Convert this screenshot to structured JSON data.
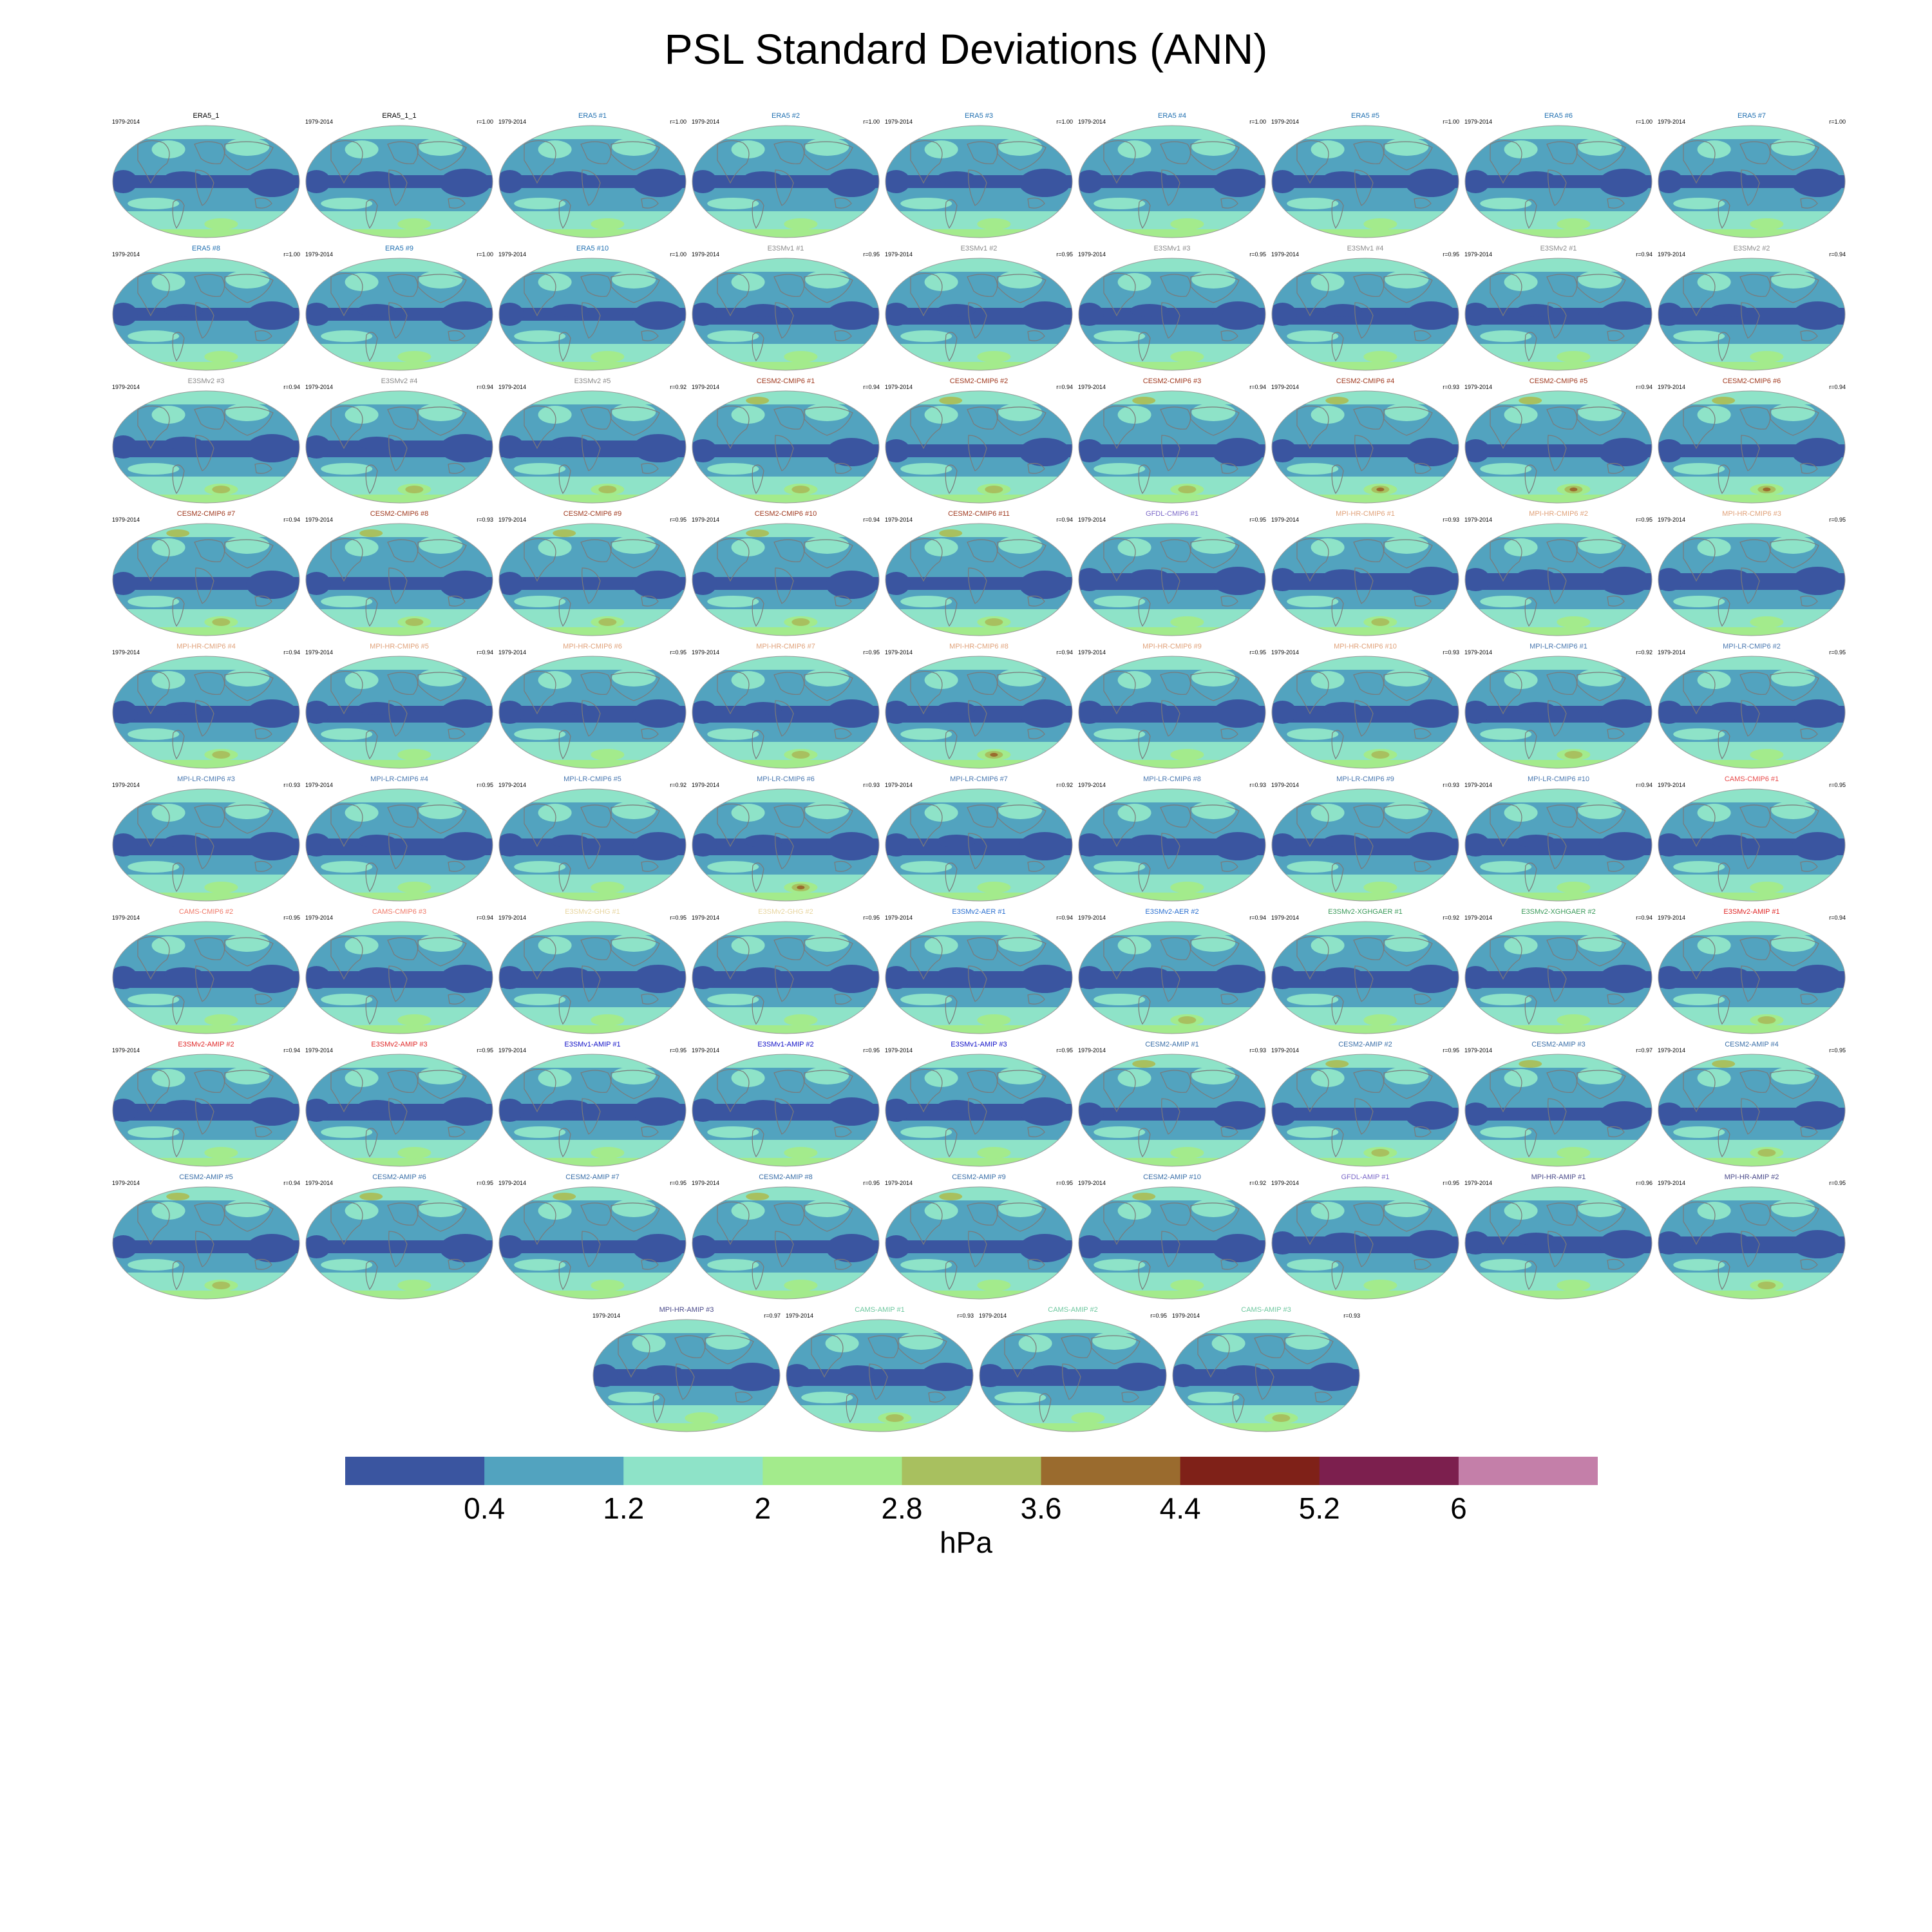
{
  "title": "PSL Standard Deviations (ANN)",
  "colorbar": {
    "units": "hPa",
    "ticks": [
      "0.4",
      "1.2",
      "2",
      "2.8",
      "3.6",
      "4.4",
      "5.2",
      "6"
    ],
    "colors": [
      "#3a55a0",
      "#52a3bf",
      "#8ee3c8",
      "#a3eb8c",
      "#a8c05f",
      "#9a6b2e",
      "#7f2118",
      "#7c1f4e",
      "#c47fa9"
    ]
  },
  "panels": [
    {
      "name": "ERA5_1",
      "period": "1979-2014",
      "r": "",
      "color": "#000000",
      "variant": 0,
      "hot": 0
    },
    {
      "name": "ERA5_1_1",
      "period": "1979-2014",
      "r": "r=1.00",
      "color": "#000000",
      "variant": 0,
      "hot": 0
    },
    {
      "name": "ERA5 #1",
      "period": "1979-2014",
      "r": "r=1.00",
      "color": "#1f6fb0",
      "variant": 0,
      "hot": 0
    },
    {
      "name": "ERA5 #2",
      "period": "1979-2014",
      "r": "r=1.00",
      "color": "#1f6fb0",
      "variant": 0,
      "hot": 0
    },
    {
      "name": "ERA5 #3",
      "period": "1979-2014",
      "r": "r=1.00",
      "color": "#1f6fb0",
      "variant": 0,
      "hot": 0
    },
    {
      "name": "ERA5 #4",
      "period": "1979-2014",
      "r": "r=1.00",
      "color": "#1f6fb0",
      "variant": 0,
      "hot": 0
    },
    {
      "name": "ERA5 #5",
      "period": "1979-2014",
      "r": "r=1.00",
      "color": "#1f6fb0",
      "variant": 0,
      "hot": 0
    },
    {
      "name": "ERA5 #6",
      "period": "1979-2014",
      "r": "r=1.00",
      "color": "#1f6fb0",
      "variant": 0,
      "hot": 0
    },
    {
      "name": "ERA5 #7",
      "period": "1979-2014",
      "r": "r=1.00",
      "color": "#1f6fb0",
      "variant": 0,
      "hot": 0
    },
    {
      "name": "ERA5 #8",
      "period": "1979-2014",
      "r": "r=1.00",
      "color": "#1f6fb0",
      "variant": 0,
      "hot": 0
    },
    {
      "name": "ERA5 #9",
      "period": "1979-2014",
      "r": "r=1.00",
      "color": "#1f6fb0",
      "variant": 0,
      "hot": 0
    },
    {
      "name": "ERA5 #10",
      "period": "1979-2014",
      "r": "r=1.00",
      "color": "#1f6fb0",
      "variant": 0,
      "hot": 0
    },
    {
      "name": "E3SMv1 #1",
      "period": "1979-2014",
      "r": "r=0.95",
      "color": "#8a8a8a",
      "variant": 1,
      "hot": 0
    },
    {
      "name": "E3SMv1 #2",
      "period": "1979-2014",
      "r": "r=0.95",
      "color": "#8a8a8a",
      "variant": 1,
      "hot": 0
    },
    {
      "name": "E3SMv1 #3",
      "period": "1979-2014",
      "r": "r=0.95",
      "color": "#8a8a8a",
      "variant": 1,
      "hot": 0
    },
    {
      "name": "E3SMv1 #4",
      "period": "1979-2014",
      "r": "r=0.95",
      "color": "#8a8a8a",
      "variant": 1,
      "hot": 0
    },
    {
      "name": "E3SMv2 #1",
      "period": "1979-2014",
      "r": "r=0.94",
      "color": "#8a8a8a",
      "variant": 1,
      "hot": 0
    },
    {
      "name": "E3SMv2 #2",
      "period": "1979-2014",
      "r": "r=0.94",
      "color": "#8a8a8a",
      "variant": 1,
      "hot": 0
    },
    {
      "name": "E3SMv2 #3",
      "period": "1979-2014",
      "r": "r=0.94",
      "color": "#8a8a8a",
      "variant": 1,
      "hot": 1
    },
    {
      "name": "E3SMv2 #4",
      "period": "1979-2014",
      "r": "r=0.94",
      "color": "#8a8a8a",
      "variant": 1,
      "hot": 1
    },
    {
      "name": "E3SMv2 #5",
      "period": "1979-2014",
      "r": "r=0.92",
      "color": "#8a8a8a",
      "variant": 1,
      "hot": 1
    },
    {
      "name": "CESM2-CMIP6 #1",
      "period": "1979-2014",
      "r": "r=0.94",
      "color": "#a0391f",
      "variant": 2,
      "hot": 1
    },
    {
      "name": "CESM2-CMIP6 #2",
      "period": "1979-2014",
      "r": "r=0.94",
      "color": "#a0391f",
      "variant": 2,
      "hot": 1
    },
    {
      "name": "CESM2-CMIP6 #3",
      "period": "1979-2014",
      "r": "r=0.94",
      "color": "#a0391f",
      "variant": 2,
      "hot": 1
    },
    {
      "name": "CESM2-CMIP6 #4",
      "period": "1979-2014",
      "r": "r=0.93",
      "color": "#a0391f",
      "variant": 2,
      "hot": 2
    },
    {
      "name": "CESM2-CMIP6 #5",
      "period": "1979-2014",
      "r": "r=0.94",
      "color": "#a0391f",
      "variant": 2,
      "hot": 2
    },
    {
      "name": "CESM2-CMIP6 #6",
      "period": "1979-2014",
      "r": "r=0.94",
      "color": "#a0391f",
      "variant": 2,
      "hot": 2
    },
    {
      "name": "CESM2-CMIP6 #7",
      "period": "1979-2014",
      "r": "r=0.94",
      "color": "#a0391f",
      "variant": 2,
      "hot": 1
    },
    {
      "name": "CESM2-CMIP6 #8",
      "period": "1979-2014",
      "r": "r=0.93",
      "color": "#a0391f",
      "variant": 2,
      "hot": 1
    },
    {
      "name": "CESM2-CMIP6 #9",
      "period": "1979-2014",
      "r": "r=0.95",
      "color": "#a0391f",
      "variant": 2,
      "hot": 1
    },
    {
      "name": "CESM2-CMIP6 #10",
      "period": "1979-2014",
      "r": "r=0.94",
      "color": "#a0391f",
      "variant": 2,
      "hot": 1
    },
    {
      "name": "CESM2-CMIP6 #11",
      "period": "1979-2014",
      "r": "r=0.94",
      "color": "#a0391f",
      "variant": 2,
      "hot": 1
    },
    {
      "name": "GFDL-CMIP6 #1",
      "period": "1979-2014",
      "r": "r=0.95",
      "color": "#7b68c8",
      "variant": 1,
      "hot": 0
    },
    {
      "name": "MPI-HR-CMIP6 #1",
      "period": "1979-2014",
      "r": "r=0.93",
      "color": "#e0a27a",
      "variant": 1,
      "hot": 1
    },
    {
      "name": "MPI-HR-CMIP6 #2",
      "period": "1979-2014",
      "r": "r=0.95",
      "color": "#e0a27a",
      "variant": 1,
      "hot": 0
    },
    {
      "name": "MPI-HR-CMIP6 #3",
      "period": "1979-2014",
      "r": "r=0.95",
      "color": "#e0a27a",
      "variant": 1,
      "hot": 0
    },
    {
      "name": "MPI-HR-CMIP6 #4",
      "period": "1979-2014",
      "r": "r=0.94",
      "color": "#e0a27a",
      "variant": 1,
      "hot": 1
    },
    {
      "name": "MPI-HR-CMIP6 #5",
      "period": "1979-2014",
      "r": "r=0.94",
      "color": "#e0a27a",
      "variant": 1,
      "hot": 0
    },
    {
      "name": "MPI-HR-CMIP6 #6",
      "period": "1979-2014",
      "r": "r=0.95",
      "color": "#e0a27a",
      "variant": 1,
      "hot": 0
    },
    {
      "name": "MPI-HR-CMIP6 #7",
      "period": "1979-2014",
      "r": "r=0.95",
      "color": "#e0a27a",
      "variant": 1,
      "hot": 1
    },
    {
      "name": "MPI-HR-CMIP6 #8",
      "period": "1979-2014",
      "r": "r=0.94",
      "color": "#e0a27a",
      "variant": 1,
      "hot": 2
    },
    {
      "name": "MPI-HR-CMIP6 #9",
      "period": "1979-2014",
      "r": "r=0.95",
      "color": "#e0a27a",
      "variant": 1,
      "hot": 0
    },
    {
      "name": "MPI-HR-CMIP6 #10",
      "period": "1979-2014",
      "r": "r=0.93",
      "color": "#e0a27a",
      "variant": 1,
      "hot": 1
    },
    {
      "name": "MPI-LR-CMIP6 #1",
      "period": "1979-2014",
      "r": "r=0.92",
      "color": "#4a78b0",
      "variant": 1,
      "hot": 1
    },
    {
      "name": "MPI-LR-CMIP6 #2",
      "period": "1979-2014",
      "r": "r=0.95",
      "color": "#4a78b0",
      "variant": 1,
      "hot": 0
    },
    {
      "name": "MPI-LR-CMIP6 #3",
      "period": "1979-2014",
      "r": "r=0.93",
      "color": "#4a78b0",
      "variant": 1,
      "hot": 0
    },
    {
      "name": "MPI-LR-CMIP6 #4",
      "period": "1979-2014",
      "r": "r=0.95",
      "color": "#4a78b0",
      "variant": 1,
      "hot": 0
    },
    {
      "name": "MPI-LR-CMIP6 #5",
      "period": "1979-2014",
      "r": "r=0.92",
      "color": "#4a78b0",
      "variant": 1,
      "hot": 0
    },
    {
      "name": "MPI-LR-CMIP6 #6",
      "period": "1979-2014",
      "r": "r=0.93",
      "color": "#4a78b0",
      "variant": 1,
      "hot": 2
    },
    {
      "name": "MPI-LR-CMIP6 #7",
      "period": "1979-2014",
      "r": "r=0.92",
      "color": "#4a78b0",
      "variant": 1,
      "hot": 0
    },
    {
      "name": "MPI-LR-CMIP6 #8",
      "period": "1979-2014",
      "r": "r=0.93",
      "color": "#4a78b0",
      "variant": 1,
      "hot": 0
    },
    {
      "name": "MPI-LR-CMIP6 #9",
      "period": "1979-2014",
      "r": "r=0.93",
      "color": "#4a78b0",
      "variant": 1,
      "hot": 0
    },
    {
      "name": "MPI-LR-CMIP6 #10",
      "period": "1979-2014",
      "r": "r=0.94",
      "color": "#4a78b0",
      "variant": 1,
      "hot": 0
    },
    {
      "name": "CAMS-CMIP6 #1",
      "period": "1979-2014",
      "r": "r=0.95",
      "color": "#e84a4a",
      "variant": 1,
      "hot": 0
    },
    {
      "name": "CAMS-CMIP6 #2",
      "period": "1979-2014",
      "r": "r=0.95",
      "color": "#f07a6a",
      "variant": 1,
      "hot": 0
    },
    {
      "name": "CAMS-CMIP6 #3",
      "period": "1979-2014",
      "r": "r=0.94",
      "color": "#f07a6a",
      "variant": 1,
      "hot": 0
    },
    {
      "name": "E3SMv2-GHG #1",
      "period": "1979-2014",
      "r": "r=0.95",
      "color": "#e8d6a0",
      "variant": 1,
      "hot": 0
    },
    {
      "name": "E3SMv2-GHG #2",
      "period": "1979-2014",
      "r": "r=0.95",
      "color": "#e8d6a0",
      "variant": 1,
      "hot": 0
    },
    {
      "name": "E3SMv2-AER #1",
      "period": "1979-2014",
      "r": "r=0.94",
      "color": "#2a6fd0",
      "variant": 1,
      "hot": 0
    },
    {
      "name": "E3SMv2-AER #2",
      "period": "1979-2014",
      "r": "r=0.94",
      "color": "#2a6fd0",
      "variant": 1,
      "hot": 1
    },
    {
      "name": "E3SMv2-XGHGAER #1",
      "period": "1979-2014",
      "r": "r=0.92",
      "color": "#3a9a5a",
      "variant": 1,
      "hot": 0
    },
    {
      "name": "E3SMv2-XGHGAER #2",
      "period": "1979-2014",
      "r": "r=0.94",
      "color": "#3a9a5a",
      "variant": 1,
      "hot": 0
    },
    {
      "name": "E3SMv2-AMIP #1",
      "period": "1979-2014",
      "r": "r=0.94",
      "color": "#e02828",
      "variant": 1,
      "hot": 1
    },
    {
      "name": "E3SMv2-AMIP #2",
      "period": "1979-2014",
      "r": "r=0.94",
      "color": "#e02828",
      "variant": 1,
      "hot": 0
    },
    {
      "name": "E3SMv2-AMIP #3",
      "period": "1979-2014",
      "r": "r=0.95",
      "color": "#e02828",
      "variant": 1,
      "hot": 0
    },
    {
      "name": "E3SMv1-AMIP #1",
      "period": "1979-2014",
      "r": "r=0.95",
      "color": "#1010c8",
      "variant": 1,
      "hot": 0
    },
    {
      "name": "E3SMv1-AMIP #2",
      "period": "1979-2014",
      "r": "r=0.95",
      "color": "#1010c8",
      "variant": 1,
      "hot": 0
    },
    {
      "name": "E3SMv1-AMIP #3",
      "period": "1979-2014",
      "r": "r=0.95",
      "color": "#1010c8",
      "variant": 1,
      "hot": 0
    },
    {
      "name": "CESM2-AMIP #1",
      "period": "1979-2014",
      "r": "r=0.93",
      "color": "#3a6fa8",
      "variant": 2,
      "hot": 0
    },
    {
      "name": "CESM2-AMIP #2",
      "period": "1979-2014",
      "r": "r=0.95",
      "color": "#3a6fa8",
      "variant": 2,
      "hot": 1
    },
    {
      "name": "CESM2-AMIP #3",
      "period": "1979-2014",
      "r": "r=0.97",
      "color": "#3a6fa8",
      "variant": 2,
      "hot": 0
    },
    {
      "name": "CESM2-AMIP #4",
      "period": "1979-2014",
      "r": "r=0.95",
      "color": "#3a6fa8",
      "variant": 2,
      "hot": 1
    },
    {
      "name": "CESM2-AMIP #5",
      "period": "1979-2014",
      "r": "r=0.94",
      "color": "#3a6fa8",
      "variant": 2,
      "hot": 1
    },
    {
      "name": "CESM2-AMIP #6",
      "period": "1979-2014",
      "r": "r=0.95",
      "color": "#3a6fa8",
      "variant": 2,
      "hot": 0
    },
    {
      "name": "CESM2-AMIP #7",
      "period": "1979-2014",
      "r": "r=0.95",
      "color": "#3a6fa8",
      "variant": 2,
      "hot": 0
    },
    {
      "name": "CESM2-AMIP #8",
      "period": "1979-2014",
      "r": "r=0.95",
      "color": "#3a6fa8",
      "variant": 2,
      "hot": 0
    },
    {
      "name": "CESM2-AMIP #9",
      "period": "1979-2014",
      "r": "r=0.95",
      "color": "#3a6fa8",
      "variant": 2,
      "hot": 0
    },
    {
      "name": "CESM2-AMIP #10",
      "period": "1979-2014",
      "r": "r=0.92",
      "color": "#3a6fa8",
      "variant": 2,
      "hot": 0
    },
    {
      "name": "GFDL-AMIP #1",
      "period": "1979-2014",
      "r": "r=0.95",
      "color": "#7b68c8",
      "variant": 1,
      "hot": 0
    },
    {
      "name": "MPI-HR-AMIP #1",
      "period": "1979-2014",
      "r": "r=0.96",
      "color": "#4a4a8a",
      "variant": 1,
      "hot": 0
    },
    {
      "name": "MPI-HR-AMIP #2",
      "period": "1979-2014",
      "r": "r=0.95",
      "color": "#4a4a8a",
      "variant": 1,
      "hot": 1
    },
    {
      "name": "MPI-HR-AMIP #3",
      "period": "1979-2014",
      "r": "r=0.97",
      "color": "#4a4a8a",
      "variant": 1,
      "hot": 0
    },
    {
      "name": "CAMS-AMIP #1",
      "period": "1979-2014",
      "r": "r=0.93",
      "color": "#6fc8a0",
      "variant": 1,
      "hot": 1
    },
    {
      "name": "CAMS-AMIP #2",
      "period": "1979-2014",
      "r": "r=0.95",
      "color": "#6fc8a0",
      "variant": 1,
      "hot": 0
    },
    {
      "name": "CAMS-AMIP #3",
      "period": "1979-2014",
      "r": "r=0.93",
      "color": "#6fc8a0",
      "variant": 1,
      "hot": 1
    }
  ]
}
